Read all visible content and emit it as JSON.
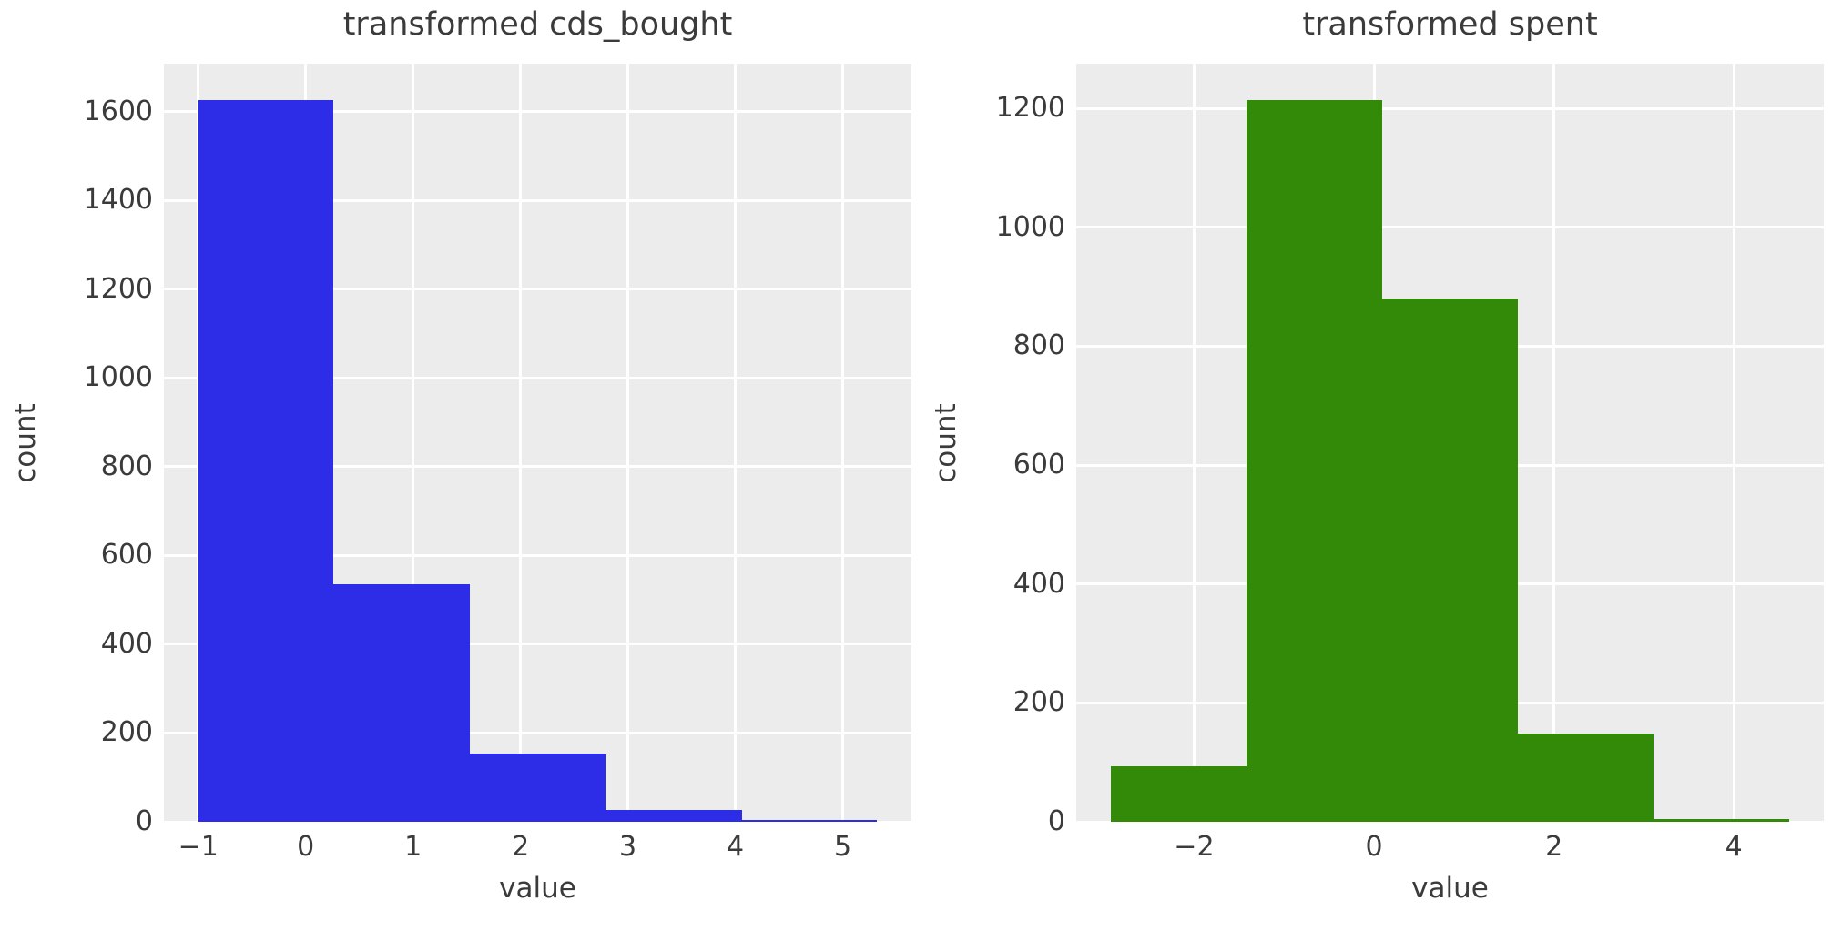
{
  "figure": {
    "background": "#ffffff",
    "plot_background": "#ececec",
    "grid_color": "#ffffff",
    "text_color": "#3b3b3b",
    "grid": true,
    "legend": "none"
  },
  "chart_data": [
    {
      "type": "bar",
      "subtype": "histogram",
      "title": "transformed cds_bought",
      "xlabel": "value",
      "ylabel": "count",
      "bar_color": "#2d2de8",
      "bin_edges": [
        -1.0,
        0.26,
        1.53,
        2.79,
        4.06,
        5.32
      ],
      "counts": [
        1627,
        535,
        154,
        27,
        5
      ],
      "xlim": [
        -1.32,
        5.64
      ],
      "ylim": [
        0,
        1708
      ],
      "xticks": [
        -1,
        0,
        1,
        2,
        3,
        4,
        5
      ],
      "yticks": [
        0,
        200,
        400,
        600,
        800,
        1000,
        1200,
        1400,
        1600
      ]
    },
    {
      "type": "bar",
      "subtype": "histogram",
      "title": "transformed spent",
      "xlabel": "value",
      "ylabel": "count",
      "bar_color": "#338a08",
      "bin_edges": [
        -2.93,
        -1.42,
        0.09,
        1.6,
        3.11,
        4.62
      ],
      "counts": [
        93,
        1214,
        880,
        148,
        5
      ],
      "xlim": [
        -3.31,
        5.0
      ],
      "ylim": [
        0,
        1275
      ],
      "xticks": [
        -2,
        0,
        2,
        4
      ],
      "yticks": [
        0,
        200,
        400,
        600,
        800,
        1000,
        1200
      ]
    }
  ]
}
